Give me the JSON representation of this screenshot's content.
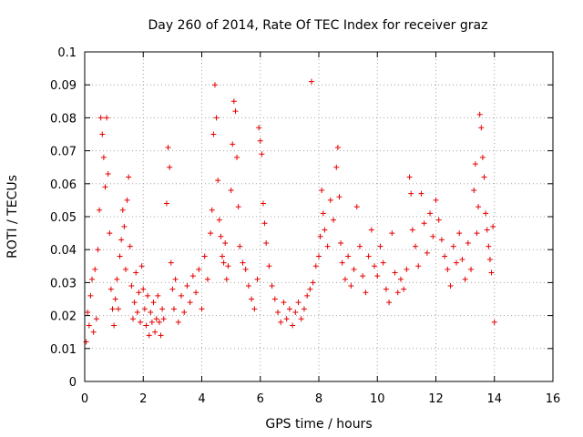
{
  "chart_data": {
    "type": "scatter",
    "title": "Day 260 of 2014, Rate Of TEC Index for receiver graz",
    "xlabel": "GPS time / hours",
    "ylabel": "ROTI / TECUs",
    "xlim": [
      0,
      16
    ],
    "ylim": [
      0,
      0.1
    ],
    "xticks": [
      0,
      2,
      4,
      6,
      8,
      10,
      12,
      14,
      16
    ],
    "xtick_labels": [
      "0",
      "2",
      "4",
      "6",
      "8",
      "10",
      "12",
      "14",
      "16"
    ],
    "yticks": [
      0,
      0.01,
      0.02,
      0.03,
      0.04,
      0.05,
      0.06,
      0.07,
      0.08,
      0.09,
      0.1
    ],
    "ytick_labels": [
      "0",
      "0.01",
      "0.02",
      "0.03",
      "0.04",
      "0.05",
      "0.06",
      "0.07",
      "0.08",
      "0.09",
      "0.1"
    ],
    "grid": true,
    "marker": "+",
    "color": "#e60000",
    "series": [
      {
        "name": "ROTI",
        "points": [
          [
            0.05,
            0.012
          ],
          [
            0.1,
            0.021
          ],
          [
            0.15,
            0.017
          ],
          [
            0.2,
            0.026
          ],
          [
            0.25,
            0.031
          ],
          [
            0.3,
            0.015
          ],
          [
            0.35,
            0.034
          ],
          [
            0.4,
            0.019
          ],
          [
            0.45,
            0.04
          ],
          [
            0.5,
            0.052
          ],
          [
            0.55,
            0.08
          ],
          [
            0.6,
            0.075
          ],
          [
            0.65,
            0.068
          ],
          [
            0.7,
            0.059
          ],
          [
            0.75,
            0.08
          ],
          [
            0.8,
            0.063
          ],
          [
            0.85,
            0.045
          ],
          [
            0.9,
            0.028
          ],
          [
            0.95,
            0.022
          ],
          [
            1.0,
            0.017
          ],
          [
            1.05,
            0.025
          ],
          [
            1.1,
            0.031
          ],
          [
            1.15,
            0.022
          ],
          [
            1.2,
            0.038
          ],
          [
            1.25,
            0.043
          ],
          [
            1.3,
            0.052
          ],
          [
            1.35,
            0.047
          ],
          [
            1.4,
            0.034
          ],
          [
            1.45,
            0.055
          ],
          [
            1.5,
            0.062
          ],
          [
            1.55,
            0.041
          ],
          [
            1.6,
            0.029
          ],
          [
            1.65,
            0.019
          ],
          [
            1.7,
            0.024
          ],
          [
            1.75,
            0.033
          ],
          [
            1.8,
            0.021
          ],
          [
            1.85,
            0.027
          ],
          [
            1.9,
            0.018
          ],
          [
            1.95,
            0.035
          ],
          [
            2.0,
            0.028
          ],
          [
            2.05,
            0.022
          ],
          [
            2.1,
            0.017
          ],
          [
            2.15,
            0.026
          ],
          [
            2.2,
            0.014
          ],
          [
            2.25,
            0.021
          ],
          [
            2.3,
            0.018
          ],
          [
            2.35,
            0.024
          ],
          [
            2.4,
            0.015
          ],
          [
            2.45,
            0.019
          ],
          [
            2.5,
            0.026
          ],
          [
            2.55,
            0.018
          ],
          [
            2.6,
            0.014
          ],
          [
            2.65,
            0.022
          ],
          [
            2.7,
            0.019
          ],
          [
            2.8,
            0.054
          ],
          [
            2.85,
            0.071
          ],
          [
            2.9,
            0.065
          ],
          [
            2.95,
            0.036
          ],
          [
            3.0,
            0.028
          ],
          [
            3.05,
            0.022
          ],
          [
            3.1,
            0.031
          ],
          [
            3.2,
            0.018
          ],
          [
            3.3,
            0.026
          ],
          [
            3.4,
            0.021
          ],
          [
            3.5,
            0.029
          ],
          [
            3.6,
            0.024
          ],
          [
            3.7,
            0.032
          ],
          [
            3.8,
            0.027
          ],
          [
            3.9,
            0.034
          ],
          [
            4.0,
            0.022
          ],
          [
            4.1,
            0.038
          ],
          [
            4.2,
            0.031
          ],
          [
            4.3,
            0.045
          ],
          [
            4.35,
            0.052
          ],
          [
            4.4,
            0.075
          ],
          [
            4.45,
            0.09
          ],
          [
            4.5,
            0.08
          ],
          [
            4.55,
            0.061
          ],
          [
            4.6,
            0.049
          ],
          [
            4.65,
            0.044
          ],
          [
            4.7,
            0.038
          ],
          [
            4.75,
            0.036
          ],
          [
            4.8,
            0.042
          ],
          [
            4.85,
            0.031
          ],
          [
            4.9,
            0.035
          ],
          [
            5.0,
            0.058
          ],
          [
            5.05,
            0.072
          ],
          [
            5.1,
            0.085
          ],
          [
            5.15,
            0.082
          ],
          [
            5.2,
            0.068
          ],
          [
            5.25,
            0.053
          ],
          [
            5.3,
            0.041
          ],
          [
            5.4,
            0.036
          ],
          [
            5.5,
            0.034
          ],
          [
            5.6,
            0.029
          ],
          [
            5.7,
            0.025
          ],
          [
            5.8,
            0.022
          ],
          [
            5.9,
            0.031
          ],
          [
            5.95,
            0.077
          ],
          [
            6.0,
            0.073
          ],
          [
            6.05,
            0.069
          ],
          [
            6.1,
            0.054
          ],
          [
            6.15,
            0.048
          ],
          [
            6.2,
            0.042
          ],
          [
            6.3,
            0.035
          ],
          [
            6.4,
            0.029
          ],
          [
            6.5,
            0.025
          ],
          [
            6.6,
            0.021
          ],
          [
            6.7,
            0.018
          ],
          [
            6.8,
            0.024
          ],
          [
            6.9,
            0.019
          ],
          [
            7.0,
            0.022
          ],
          [
            7.1,
            0.017
          ],
          [
            7.2,
            0.021
          ],
          [
            7.3,
            0.024
          ],
          [
            7.4,
            0.019
          ],
          [
            7.5,
            0.022
          ],
          [
            7.6,
            0.026
          ],
          [
            7.7,
            0.028
          ],
          [
            7.75,
            0.091
          ],
          [
            7.8,
            0.03
          ],
          [
            7.9,
            0.035
          ],
          [
            8.0,
            0.038
          ],
          [
            8.05,
            0.044
          ],
          [
            8.1,
            0.058
          ],
          [
            8.15,
            0.051
          ],
          [
            8.2,
            0.046
          ],
          [
            8.3,
            0.041
          ],
          [
            8.4,
            0.055
          ],
          [
            8.5,
            0.049
          ],
          [
            8.6,
            0.065
          ],
          [
            8.65,
            0.071
          ],
          [
            8.7,
            0.056
          ],
          [
            8.75,
            0.042
          ],
          [
            8.8,
            0.036
          ],
          [
            8.9,
            0.031
          ],
          [
            9.0,
            0.038
          ],
          [
            9.1,
            0.029
          ],
          [
            9.2,
            0.034
          ],
          [
            9.3,
            0.053
          ],
          [
            9.4,
            0.041
          ],
          [
            9.5,
            0.032
          ],
          [
            9.6,
            0.027
          ],
          [
            9.7,
            0.038
          ],
          [
            9.8,
            0.046
          ],
          [
            9.9,
            0.035
          ],
          [
            10.0,
            0.032
          ],
          [
            10.1,
            0.041
          ],
          [
            10.2,
            0.036
          ],
          [
            10.3,
            0.028
          ],
          [
            10.4,
            0.024
          ],
          [
            10.5,
            0.045
          ],
          [
            10.6,
            0.033
          ],
          [
            10.7,
            0.027
          ],
          [
            10.8,
            0.031
          ],
          [
            10.9,
            0.028
          ],
          [
            11.0,
            0.034
          ],
          [
            11.1,
            0.062
          ],
          [
            11.15,
            0.057
          ],
          [
            11.2,
            0.046
          ],
          [
            11.3,
            0.041
          ],
          [
            11.4,
            0.035
          ],
          [
            11.5,
            0.057
          ],
          [
            11.6,
            0.048
          ],
          [
            11.7,
            0.039
          ],
          [
            11.8,
            0.051
          ],
          [
            11.9,
            0.044
          ],
          [
            12.0,
            0.055
          ],
          [
            12.1,
            0.049
          ],
          [
            12.2,
            0.043
          ],
          [
            12.3,
            0.038
          ],
          [
            12.4,
            0.034
          ],
          [
            12.5,
            0.029
          ],
          [
            12.6,
            0.041
          ],
          [
            12.7,
            0.036
          ],
          [
            12.8,
            0.045
          ],
          [
            12.9,
            0.037
          ],
          [
            13.0,
            0.031
          ],
          [
            13.1,
            0.042
          ],
          [
            13.2,
            0.034
          ],
          [
            13.3,
            0.058
          ],
          [
            13.35,
            0.066
          ],
          [
            13.4,
            0.045
          ],
          [
            13.45,
            0.053
          ],
          [
            13.5,
            0.081
          ],
          [
            13.55,
            0.077
          ],
          [
            13.6,
            0.068
          ],
          [
            13.65,
            0.062
          ],
          [
            13.7,
            0.051
          ],
          [
            13.75,
            0.046
          ],
          [
            13.8,
            0.041
          ],
          [
            13.85,
            0.037
          ],
          [
            13.9,
            0.033
          ],
          [
            13.95,
            0.047
          ],
          [
            14.0,
            0.018
          ]
        ]
      }
    ]
  }
}
